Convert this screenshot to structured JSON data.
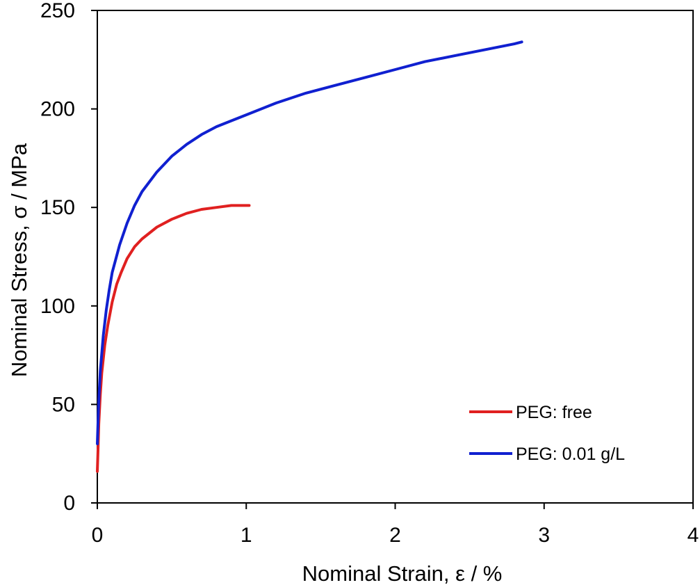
{
  "chart_data": {
    "type": "line",
    "xlabel": "Nominal Strain, ε / %",
    "ylabel": "Nominal Stress, σ / MPa",
    "xlim": [
      0,
      4
    ],
    "ylim": [
      0,
      250
    ],
    "xticks": [
      0,
      1,
      2,
      3,
      4
    ],
    "yticks": [
      0,
      50,
      100,
      150,
      200,
      250
    ],
    "grid": false,
    "legend_position": "bottom-right",
    "series": [
      {
        "name": "PEG: free",
        "color": "#e02020",
        "x": [
          0.0,
          0.005,
          0.01,
          0.02,
          0.03,
          0.05,
          0.07,
          0.1,
          0.13,
          0.16,
          0.2,
          0.25,
          0.3,
          0.35,
          0.4,
          0.5,
          0.6,
          0.7,
          0.8,
          0.9,
          1.0,
          1.02
        ],
        "y": [
          16,
          28,
          40,
          55,
          66,
          80,
          90,
          102,
          111,
          117,
          124,
          130,
          134,
          137,
          140,
          144,
          147,
          149,
          150,
          151,
          151,
          151
        ]
      },
      {
        "name": "PEG: 0.01 g/L",
        "color": "#1020d0",
        "x": [
          0.0,
          0.005,
          0.01,
          0.02,
          0.04,
          0.06,
          0.08,
          0.1,
          0.15,
          0.2,
          0.25,
          0.3,
          0.4,
          0.5,
          0.6,
          0.7,
          0.8,
          0.9,
          1.0,
          1.2,
          1.4,
          1.6,
          1.8,
          2.0,
          2.2,
          2.4,
          2.6,
          2.8,
          2.85
        ],
        "y": [
          30,
          42,
          52,
          67,
          85,
          98,
          108,
          117,
          131,
          142,
          151,
          158,
          168,
          176,
          182,
          187,
          191,
          194,
          197,
          203,
          208,
          212,
          216,
          220,
          224,
          227,
          230,
          233,
          234
        ]
      }
    ]
  }
}
